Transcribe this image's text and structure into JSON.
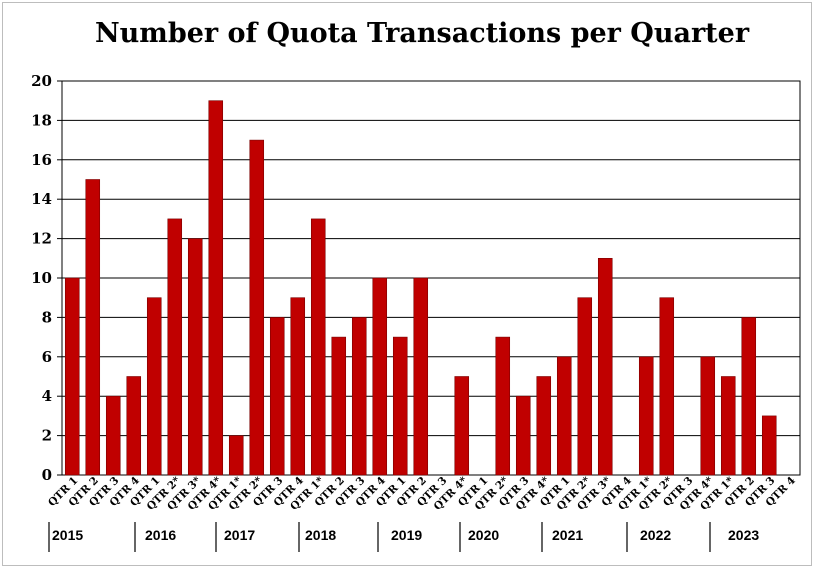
{
  "chart_data": {
    "type": "bar",
    "title": "Number of Quota Transactions per Quarter",
    "ylim": [
      0,
      20
    ],
    "yticks": [
      0,
      2,
      4,
      6,
      8,
      10,
      12,
      14,
      16,
      18,
      20
    ],
    "grid": true,
    "bar_color": "#c00000",
    "categories": [
      "QTR 1",
      "QTR 2",
      "QTR 3",
      "QTR 4",
      "QTR 1",
      "QTR 2*",
      "QTR 3*",
      "QTR 4*",
      "QTR 1*",
      "QTR 2*",
      "QTR 3",
      "QTR 4",
      "QTR 1*",
      "QTR 2",
      "QTR 3",
      "QTR 4",
      "QTR 1",
      "QTR 2",
      "QTR 3",
      "QTR 4*",
      "QTR 1",
      "QTR 2*",
      "QTR 3",
      "QTR 4*",
      "QTR 1",
      "QTR 2*",
      "QTR 3*",
      "QTR 4",
      "QTR 1*",
      "QTR 2*",
      "QTR 3",
      "QTR 4*",
      "QTR 1*",
      "QTR 2",
      "QTR 3",
      "QTR 4"
    ],
    "values": [
      10,
      15,
      4,
      5,
      9,
      13,
      12,
      19,
      2,
      17,
      8,
      9,
      13,
      7,
      8,
      10,
      7,
      10,
      0,
      5,
      0,
      7,
      4,
      5,
      6,
      9,
      11,
      0,
      6,
      9,
      0,
      6,
      5,
      8,
      3,
      0
    ],
    "years": [
      "2015",
      "2016",
      "2017",
      "2018",
      "2019",
      "2020",
      "2021",
      "2022",
      "2023"
    ]
  }
}
